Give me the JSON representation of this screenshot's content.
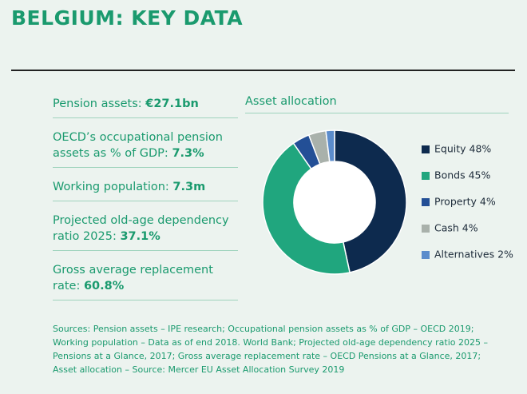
{
  "title": "BELGIUM: KEY DATA",
  "stats": [
    {
      "label": "Pension assets:",
      "value": "€27.1bn"
    },
    {
      "label": "OECD’s occupational pension assets as % of GDP:",
      "value": "7.3%"
    },
    {
      "label": "Working population:",
      "value": "7.3m"
    },
    {
      "label": "Projected old-age dependency ratio 2025:",
      "value": "37.1%"
    },
    {
      "label": "Gross average replacement rate:",
      "value": "60.8%"
    }
  ],
  "sources": "Sources: Pension assets – IPE research; Occupational pension assets as % of GDP – OECD 2019; Working population – Data as of end 2018. World Bank; Projected old-age dependency ratio 2025 – Pensions at a Glance, 2017; Gross average replacement rate – OECD Pensions at a Glance, 2017; Asset allocation – Source: Mercer EU Asset Allocation Survey 2019",
  "chart_data": {
    "type": "donut",
    "title": "Asset allocation",
    "categories": [
      "Equity 48%",
      "Bonds 45%",
      "Property 4%",
      "Cash 4%",
      "Alternatives 2%"
    ],
    "values": [
      48,
      45,
      4,
      4,
      2
    ],
    "colors": [
      "#0d2a4e",
      "#20a67e",
      "#234f96",
      "#a9b1ab",
      "#5b8ccc"
    ],
    "legend": "right"
  }
}
